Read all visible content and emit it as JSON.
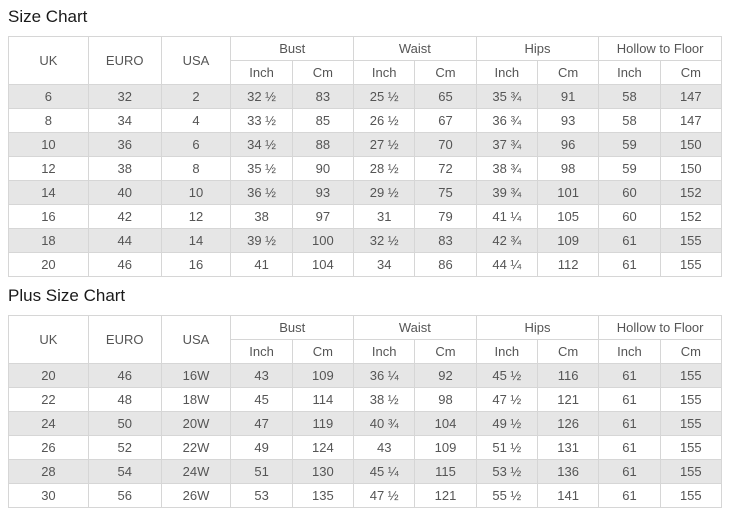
{
  "colors": {
    "border": "#d6d6d6",
    "row_alt_bg": "#e6e6e6",
    "row_bg": "#ffffff",
    "text": "#555555",
    "title": "#1a1a1a"
  },
  "header": {
    "simple_columns": [
      "UK",
      "EURO",
      "USA"
    ],
    "group_columns": [
      "Bust",
      "Waist",
      "Hips",
      "Hollow to Floor"
    ],
    "sub_columns": [
      "Inch",
      "Cm"
    ]
  },
  "tables": [
    {
      "title": "Size Chart",
      "rows": [
        [
          "6",
          "32",
          "2",
          "32 ½",
          "83",
          "25 ½",
          "65",
          "35 ¾",
          "91",
          "58",
          "147"
        ],
        [
          "8",
          "34",
          "4",
          "33 ½",
          "85",
          "26 ½",
          "67",
          "36 ¾",
          "93",
          "58",
          "147"
        ],
        [
          "10",
          "36",
          "6",
          "34 ½",
          "88",
          "27 ½",
          "70",
          "37 ¾",
          "96",
          "59",
          "150"
        ],
        [
          "12",
          "38",
          "8",
          "35 ½",
          "90",
          "28 ½",
          "72",
          "38 ¾",
          "98",
          "59",
          "150"
        ],
        [
          "14",
          "40",
          "10",
          "36 ½",
          "93",
          "29 ½",
          "75",
          "39 ¾",
          "101",
          "60",
          "152"
        ],
        [
          "16",
          "42",
          "12",
          "38",
          "97",
          "31",
          "79",
          "41 ¼",
          "105",
          "60",
          "152"
        ],
        [
          "18",
          "44",
          "14",
          "39 ½",
          "100",
          "32 ½",
          "83",
          "42 ¾",
          "109",
          "61",
          "155"
        ],
        [
          "20",
          "46",
          "16",
          "41",
          "104",
          "34",
          "86",
          "44 ¼",
          "112",
          "61",
          "155"
        ]
      ]
    },
    {
      "title": "Plus Size Chart",
      "rows": [
        [
          "20",
          "46",
          "16W",
          "43",
          "109",
          "36 ¼",
          "92",
          "45 ½",
          "116",
          "61",
          "155"
        ],
        [
          "22",
          "48",
          "18W",
          "45",
          "114",
          "38 ½",
          "98",
          "47 ½",
          "121",
          "61",
          "155"
        ],
        [
          "24",
          "50",
          "20W",
          "47",
          "119",
          "40 ¾",
          "104",
          "49 ½",
          "126",
          "61",
          "155"
        ],
        [
          "26",
          "52",
          "22W",
          "49",
          "124",
          "43",
          "109",
          "51 ½",
          "131",
          "61",
          "155"
        ],
        [
          "28",
          "54",
          "24W",
          "51",
          "130",
          "45 ¼",
          "115",
          "53 ½",
          "136",
          "61",
          "155"
        ],
        [
          "30",
          "56",
          "26W",
          "53",
          "135",
          "47 ½",
          "121",
          "55 ½",
          "141",
          "61",
          "155"
        ]
      ]
    }
  ]
}
